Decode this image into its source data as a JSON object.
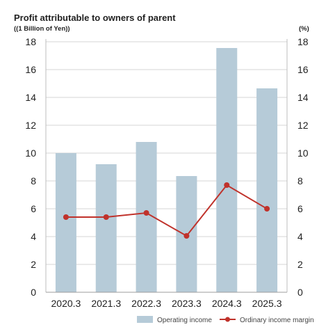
{
  "title": "Profit attributable to owners of parent",
  "unit_left": "((1 Billion of Yen))",
  "unit_right": "(%)",
  "colors": {
    "bar": "#b6cbd8",
    "line": "#c0322b",
    "grid": "#d4d4d4"
  },
  "chart_data": {
    "type": "bar",
    "categories": [
      "2020.3",
      "2021.3",
      "2022.3",
      "2023.3",
      "2024.3",
      "2025.3"
    ],
    "series": [
      {
        "name": "Operating income",
        "type": "bar",
        "axis": "left",
        "values": [
          10.0,
          9.2,
          10.8,
          8.35,
          17.55,
          14.65
        ]
      },
      {
        "name": "Ordinary income margin",
        "type": "line",
        "axis": "right",
        "values": [
          5.4,
          5.4,
          5.7,
          4.05,
          7.7,
          6.0
        ]
      }
    ],
    "ylim": [
      0,
      18
    ],
    "y2lim": [
      0,
      18
    ],
    "yticks": [
      "0",
      "2",
      "4",
      "6",
      "8",
      "10",
      "12",
      "14",
      "16",
      "18"
    ],
    "y2ticks": [
      "0",
      "2",
      "4",
      "6",
      "8",
      "10",
      "12",
      "14",
      "16",
      "18"
    ],
    "grid": true,
    "legend": "bottom-right"
  }
}
